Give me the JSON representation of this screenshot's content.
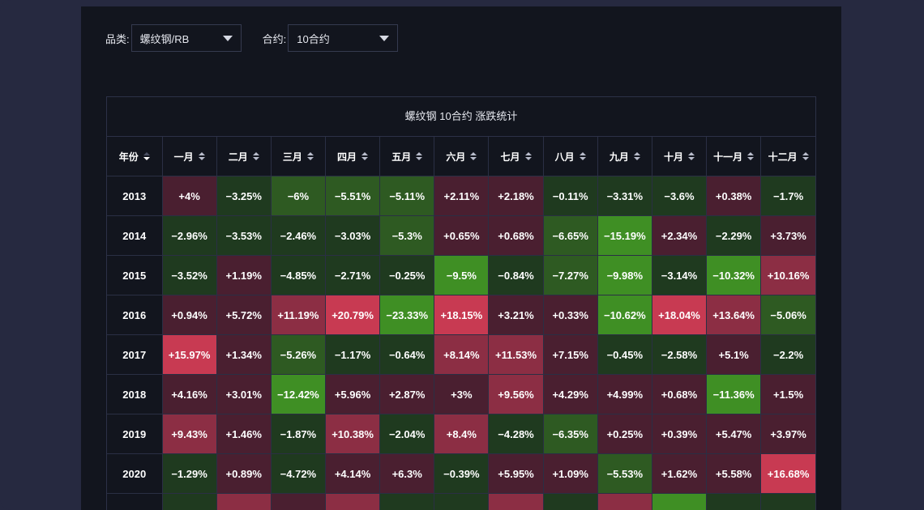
{
  "filters": {
    "category_label": "品类:",
    "category_value": "螺纹钢/RB",
    "contract_label": "合约:",
    "contract_value": "10合约"
  },
  "table": {
    "title": "螺纹钢 10合约 涨跌统计",
    "year_header": "年份",
    "months": [
      "一月",
      "二月",
      "三月",
      "四月",
      "五月",
      "六月",
      "七月",
      "八月",
      "九月",
      "十月",
      "十一月",
      "十二月"
    ],
    "rows": [
      {
        "year": "2013",
        "values": [
          "+4%",
          "−3.25%",
          "−6%",
          "−5.51%",
          "−5.11%",
          "+2.11%",
          "+2.18%",
          "−0.11%",
          "−3.31%",
          "−3.6%",
          "+0.38%",
          "−1.7%"
        ]
      },
      {
        "year": "2014",
        "values": [
          "−2.96%",
          "−3.53%",
          "−2.46%",
          "−3.03%",
          "−5.3%",
          "+0.65%",
          "+0.68%",
          "−6.65%",
          "−15.19%",
          "+2.34%",
          "−2.29%",
          "+3.73%"
        ]
      },
      {
        "year": "2015",
        "values": [
          "−3.52%",
          "+1.19%",
          "−4.85%",
          "−2.71%",
          "−0.25%",
          "−9.5%",
          "−0.84%",
          "−7.27%",
          "−9.98%",
          "−3.14%",
          "−10.32%",
          "+10.16%"
        ]
      },
      {
        "year": "2016",
        "values": [
          "+0.94%",
          "+5.72%",
          "+11.19%",
          "+20.79%",
          "−23.33%",
          "+18.15%",
          "+3.21%",
          "+0.33%",
          "−10.62%",
          "+18.04%",
          "+13.64%",
          "−5.06%"
        ]
      },
      {
        "year": "2017",
        "values": [
          "+15.97%",
          "+1.34%",
          "−5.26%",
          "−1.17%",
          "−0.64%",
          "+8.14%",
          "+11.53%",
          "+7.15%",
          "−0.45%",
          "−2.58%",
          "+5.1%",
          "−2.2%"
        ]
      },
      {
        "year": "2018",
        "values": [
          "+4.16%",
          "+3.01%",
          "−12.42%",
          "+5.96%",
          "+2.87%",
          "+3%",
          "+9.56%",
          "+4.29%",
          "+4.99%",
          "+0.68%",
          "−11.36%",
          "+1.5%"
        ]
      },
      {
        "year": "2019",
        "values": [
          "+9.43%",
          "+1.46%",
          "−1.87%",
          "+10.38%",
          "−2.04%",
          "+8.4%",
          "−4.28%",
          "−6.35%",
          "+0.25%",
          "+0.39%",
          "+5.47%",
          "+3.97%"
        ]
      },
      {
        "year": "2020",
        "values": [
          "−1.29%",
          "+0.89%",
          "−4.72%",
          "+4.14%",
          "+6.3%",
          "−0.39%",
          "+5.95%",
          "+1.09%",
          "−5.53%",
          "+1.62%",
          "+5.58%",
          "+16.68%"
        ]
      },
      {
        "year": "",
        "values": [
          "",
          "",
          "",
          "",
          "",
          "",
          "",
          "",
          "",
          "",
          "",
          ""
        ]
      }
    ]
  },
  "colors": {
    "positive_weak": "#4a1f30",
    "positive_mid": "#8c2e44",
    "positive_strong": "#c83a52",
    "negative_weak": "#1f3a1f",
    "negative_mid": "#2e5a22",
    "negative_strong": "#3f8f24"
  }
}
